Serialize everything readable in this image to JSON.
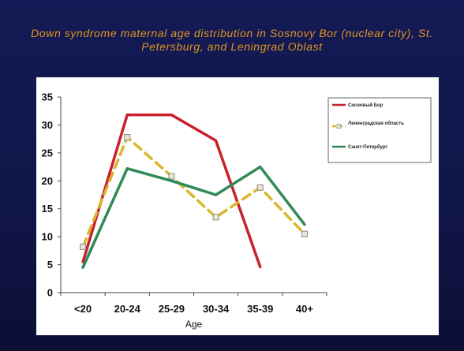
{
  "slide": {
    "title": "Down syndrome maternal age distribution in Sosnovy Bor (nuclear city), St. Petersburg, and Leningrad Oblast"
  },
  "chart_data": {
    "type": "line",
    "title": "",
    "xlabel": "Age",
    "ylabel": "",
    "categories": [
      "<20",
      "20-24",
      "25-29",
      "30-34",
      "35-39",
      "40+"
    ],
    "ylim": [
      0,
      35
    ],
    "yticks": [
      0,
      5,
      10,
      15,
      20,
      25,
      30,
      35
    ],
    "grid": false,
    "legend": "right",
    "series": [
      {
        "name": "Сосновый Бор",
        "color": "#c8202c",
        "dash": false,
        "marker": "none",
        "values": [
          5.5,
          31.8,
          31.8,
          27.2,
          4.6,
          null
        ]
      },
      {
        "name": "Ленинградская область",
        "color": "#d9b62a",
        "dash": true,
        "marker": "square",
        "values": [
          8.2,
          27.8,
          20.8,
          13.5,
          18.8,
          10.5
        ]
      },
      {
        "name": "Санкт-Петербург",
        "color": "#2f8a55",
        "dash": false,
        "marker": "none",
        "values": [
          4.5,
          22.2,
          20.0,
          17.5,
          22.5,
          12.2
        ]
      }
    ]
  }
}
